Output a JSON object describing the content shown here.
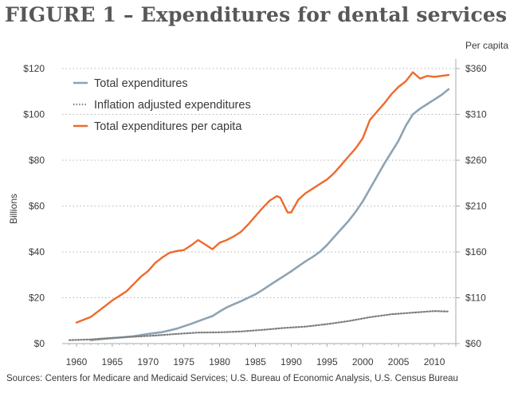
{
  "header": {
    "title": "FIGURE 1 – Expenditures for dental services"
  },
  "footer": {
    "source": "Sources: Centers for Medicare and Medicaid Services; U.S. Bureau of Economic Analysis, U.S. Census Bureau"
  },
  "chart_data": {
    "type": "line",
    "title": "FIGURE 1 – Expenditures for dental services",
    "xlabel": "",
    "ylabel": "Billions",
    "y2label": "Per capita",
    "xlim": [
      1958,
      2013
    ],
    "ylim": [
      0,
      120
    ],
    "y2lim": [
      60,
      360
    ],
    "x_ticks": [
      1960,
      1965,
      1970,
      1975,
      1980,
      1985,
      1990,
      1995,
      2000,
      2005,
      2010
    ],
    "x_tick_labels": [
      "1960",
      "1965",
      "1970",
      "1975",
      "1980",
      "1985",
      "1990",
      "1995",
      "2000",
      "2005",
      "2010"
    ],
    "y_ticks": [
      0,
      20,
      40,
      60,
      80,
      100,
      120
    ],
    "y_tick_labels": [
      "$0",
      "$20",
      "$40",
      "$60",
      "$80",
      "$100",
      "$120"
    ],
    "y2_ticks": [
      60,
      110,
      160,
      210,
      260,
      310,
      360
    ],
    "y2_tick_labels": [
      "$60",
      "$110",
      "$160",
      "$210",
      "$260",
      "$310",
      "$360"
    ],
    "grid": "horizontal dotted",
    "legend_position": "top-left",
    "colors": {
      "total": "#8ea3b3",
      "inflation": "#7d7d7d",
      "per_capita": "#ee6a2c",
      "axis": "#aaaaaa",
      "grid": "#b5b5b5"
    },
    "series": [
      {
        "name": "Total expenditures",
        "axis": "left",
        "style": "solid",
        "x": [
          1962,
          1964,
          1966,
          1968,
          1970,
          1972,
          1974,
          1976,
          1978,
          1979,
          1980,
          1981,
          1982,
          1983,
          1984,
          1985,
          1986,
          1987,
          1988,
          1989,
          1990,
          1991,
          1992,
          1993,
          1994,
          1995,
          1996,
          1997,
          1998,
          1999,
          2000,
          2001,
          2002,
          2003,
          2004,
          2005,
          2006,
          2007,
          2008,
          2009,
          2010,
          2011,
          2012
        ],
        "values": [
          1.5,
          2.1,
          2.6,
          3.2,
          4.2,
          5.0,
          6.5,
          8.6,
          10.9,
          12.0,
          14.0,
          15.8,
          17.2,
          18.5,
          20.0,
          21.5,
          23.4,
          25.5,
          27.5,
          29.5,
          31.5,
          33.7,
          35.9,
          37.8,
          40.0,
          43.0,
          46.5,
          50.0,
          53.5,
          57.5,
          62.0,
          67.5,
          73.0,
          78.5,
          83.5,
          88.5,
          95.0,
          100.0,
          102.5,
          104.5,
          106.5,
          108.5,
          111.0
        ]
      },
      {
        "name": "Inflation adjusted expenditures",
        "axis": "left",
        "style": "dotted",
        "x": [
          1959,
          1962,
          1965,
          1968,
          1971,
          1974,
          1977,
          1980,
          1983,
          1986,
          1989,
          1992,
          1995,
          1998,
          2001,
          2004,
          2007,
          2010,
          2012
        ],
        "values": [
          1.5,
          1.8,
          2.5,
          3.0,
          3.5,
          4.2,
          4.8,
          4.9,
          5.3,
          6.0,
          6.8,
          7.4,
          8.5,
          9.8,
          11.5,
          12.8,
          13.5,
          14.2,
          14.0
        ]
      },
      {
        "name": "Total expenditures per capita",
        "axis": "right",
        "style": "solid",
        "x": [
          1960,
          1962,
          1963,
          1964,
          1965,
          1966,
          1967,
          1968,
          1969,
          1970,
          1971,
          1972,
          1973,
          1974,
          1975,
          1976,
          1977,
          1978,
          1979,
          1980,
          1981,
          1982,
          1983,
          1984,
          1985,
          1986,
          1987,
          1988,
          1988.5,
          1989,
          1989.5,
          1990,
          1991,
          1992,
          1993,
          1994,
          1995,
          1996,
          1997,
          1998,
          1999,
          2000,
          2001,
          2002,
          2003,
          2004,
          2005,
          2006,
          2007,
          2008,
          2009,
          2010,
          2011,
          2012
        ],
        "values": [
          83,
          89,
          95,
          101,
          107,
          112,
          117,
          125,
          133,
          139,
          148,
          154,
          159,
          161,
          162,
          167,
          173,
          168,
          163,
          170,
          173,
          177,
          182,
          190,
          199,
          208,
          216,
          221,
          219,
          211,
          203,
          203,
          217,
          224,
          229,
          234,
          239,
          246,
          255,
          264,
          273,
          284,
          304,
          313,
          322,
          332,
          340,
          346,
          356,
          349,
          352,
          351,
          352,
          353
        ]
      }
    ]
  }
}
